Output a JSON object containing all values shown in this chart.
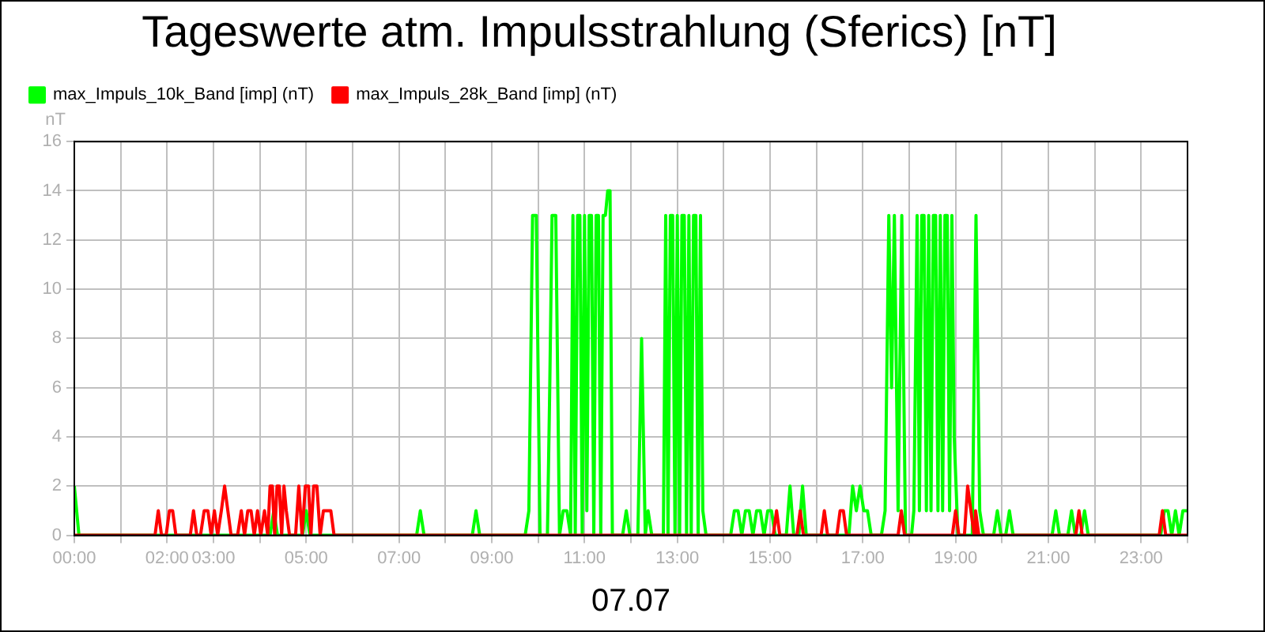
{
  "chart_data": {
    "type": "line",
    "title": "Tageswerte atm. Impulsstrahlung (Sferics) [nT]",
    "xlabel": "07.07",
    "ylabel": "nT",
    "xlim": [
      0,
      24
    ],
    "xticks": [
      {
        "value": 0,
        "label": "00:00"
      },
      {
        "value": 1,
        "label": null
      },
      {
        "value": 2,
        "label": "02:00"
      },
      {
        "value": 3,
        "label": "03:00"
      },
      {
        "value": 4,
        "label": null
      },
      {
        "value": 5,
        "label": "05:00"
      },
      {
        "value": 6,
        "label": null
      },
      {
        "value": 7,
        "label": "07:00"
      },
      {
        "value": 8,
        "label": null
      },
      {
        "value": 9,
        "label": "09:00"
      },
      {
        "value": 10,
        "label": null
      },
      {
        "value": 11,
        "label": "11:00"
      },
      {
        "value": 12,
        "label": null
      },
      {
        "value": 13,
        "label": "13:00"
      },
      {
        "value": 14,
        "label": null
      },
      {
        "value": 15,
        "label": "15:00"
      },
      {
        "value": 16,
        "label": null
      },
      {
        "value": 17,
        "label": "17:00"
      },
      {
        "value": 18,
        "label": null
      },
      {
        "value": 19,
        "label": "19:00"
      },
      {
        "value": 20,
        "label": null
      },
      {
        "value": 21,
        "label": "21:00"
      },
      {
        "value": 22,
        "label": null
      },
      {
        "value": 23,
        "label": "23:00"
      },
      {
        "value": 24,
        "label": null
      }
    ],
    "ylim": [
      0,
      16
    ],
    "yticks": [
      0,
      2,
      4,
      6,
      8,
      10,
      12,
      14,
      16
    ],
    "grid": true,
    "legend": "top left",
    "marker": "none",
    "line_style": "solid",
    "series": [
      {
        "name": "max_Impuls_10k_Band [imp] (nT)",
        "color": "#00ff00",
        "x": [
          0,
          0.1,
          4.22,
          4.3,
          4.38,
          4.92,
          5.0,
          5.08,
          7.38,
          7.46,
          7.54,
          8.58,
          8.66,
          8.74,
          9.72,
          9.8,
          9.88,
          9.96,
          10.04,
          10.2,
          10.25,
          10.3,
          10.38,
          10.46,
          10.54,
          10.62,
          10.7,
          10.75,
          10.8,
          10.85,
          10.9,
          10.95,
          11.0,
          11.05,
          11.1,
          11.15,
          11.2,
          11.25,
          11.3,
          11.35,
          11.4,
          11.45,
          11.5,
          11.55,
          11.6,
          11.82,
          11.9,
          11.98,
          12.15,
          12.23,
          12.31,
          12.37,
          12.45,
          12.7,
          12.75,
          12.8,
          12.85,
          12.9,
          12.95,
          13.0,
          13.05,
          13.1,
          13.15,
          13.2,
          13.25,
          13.3,
          13.35,
          13.4,
          13.45,
          13.5,
          13.55,
          13.62,
          14.15,
          14.23,
          14.31,
          14.39,
          14.47,
          14.55,
          14.63,
          14.71,
          14.79,
          14.87,
          14.95,
          15.03,
          15.11,
          15.35,
          15.43,
          15.51,
          15.62,
          15.7,
          15.78,
          16.7,
          16.78,
          16.86,
          16.94,
          17.02,
          17.1,
          17.18,
          17.4,
          17.48,
          17.56,
          17.62,
          17.68,
          17.76,
          17.84,
          17.92,
          18.05,
          18.1,
          18.17,
          18.22,
          18.27,
          18.32,
          18.37,
          18.42,
          18.47,
          18.52,
          18.57,
          18.62,
          18.67,
          18.72,
          18.77,
          18.82,
          18.87,
          18.92,
          18.97,
          19.05,
          19.36,
          19.44,
          19.52,
          19.6,
          19.82,
          19.9,
          19.98,
          20.08,
          20.16,
          20.24,
          21.08,
          21.16,
          21.24,
          21.42,
          21.5,
          21.58,
          21.7,
          21.78,
          21.86,
          23.42,
          23.5,
          23.58,
          23.66,
          23.74,
          23.82,
          23.9,
          24
        ],
        "values": [
          2,
          0,
          0,
          1,
          0,
          0,
          1,
          0,
          0,
          1,
          0,
          0,
          1,
          0,
          0,
          1,
          13,
          13,
          0,
          0,
          6,
          13,
          13,
          0,
          1,
          1,
          0,
          13,
          0,
          13,
          13,
          0,
          13,
          1,
          13,
          13,
          0,
          13,
          13,
          0,
          13,
          13,
          14,
          14,
          0,
          0,
          1,
          0,
          0,
          8,
          0,
          1,
          0,
          0,
          13,
          0,
          13,
          13,
          0,
          13,
          0,
          13,
          13,
          0,
          13,
          0,
          13,
          13,
          0,
          13,
          1,
          0,
          0,
          1,
          1,
          0,
          1,
          1,
          0,
          1,
          1,
          0,
          1,
          1,
          0,
          0,
          2,
          0,
          0,
          2,
          0,
          0,
          2,
          1,
          2,
          1,
          1,
          0,
          0,
          1,
          13,
          6,
          13,
          1,
          13,
          0,
          0,
          1,
          13,
          1,
          13,
          13,
          1,
          13,
          1,
          13,
          13,
          1,
          13,
          1,
          13,
          13,
          1,
          13,
          4,
          0,
          0,
          13,
          1,
          0,
          0,
          1,
          0,
          0,
          1,
          0,
          0,
          1,
          0,
          0,
          1,
          0,
          0,
          1,
          0,
          0,
          1,
          1,
          0,
          1,
          0,
          1,
          1
        ]
      },
      {
        "name": "max_Impuls_28k_Band [imp] (nT)",
        "color": "#ff0000",
        "x": [
          0,
          1.74,
          1.81,
          1.88,
          1.98,
          2.05,
          2.12,
          2.19,
          2.5,
          2.57,
          2.64,
          2.72,
          2.8,
          2.88,
          2.95,
          3.02,
          3.09,
          3.17,
          3.24,
          3.31,
          3.38,
          3.52,
          3.6,
          3.67,
          3.74,
          3.81,
          3.88,
          3.95,
          4.02,
          4.1,
          4.17,
          4.22,
          4.27,
          4.32,
          4.37,
          4.42,
          4.47,
          4.52,
          4.57,
          4.64,
          4.77,
          4.84,
          4.91,
          4.98,
          5.05,
          5.1,
          5.16,
          5.23,
          5.3,
          5.37,
          5.45,
          5.53,
          5.6,
          15.07,
          15.14,
          15.21,
          15.58,
          15.65,
          15.72,
          16.1,
          16.17,
          16.24,
          16.44,
          16.51,
          16.58,
          16.65,
          17.76,
          17.83,
          17.9,
          18.93,
          19.0,
          19.07,
          19.19,
          19.26,
          19.33,
          19.4,
          19.43,
          19.5,
          21.59,
          21.66,
          21.73,
          23.39,
          23.46,
          23.53,
          24
        ],
        "values": [
          0,
          0,
          1,
          0,
          0,
          1,
          1,
          0,
          0,
          1,
          0,
          0,
          1,
          1,
          0,
          1,
          0,
          1,
          2,
          1,
          0,
          0,
          1,
          0,
          1,
          1,
          0,
          1,
          0,
          1,
          0,
          2,
          2,
          0,
          2,
          2,
          0,
          2,
          1,
          0,
          0,
          2,
          0,
          2,
          2,
          0,
          2,
          2,
          0,
          1,
          1,
          1,
          0,
          0,
          1,
          0,
          0,
          1,
          0,
          0,
          1,
          0,
          0,
          1,
          1,
          0,
          0,
          1,
          0,
          0,
          1,
          0,
          0,
          2,
          1,
          0,
          1,
          0,
          0,
          1,
          0,
          0,
          1,
          0,
          0
        ]
      }
    ]
  }
}
